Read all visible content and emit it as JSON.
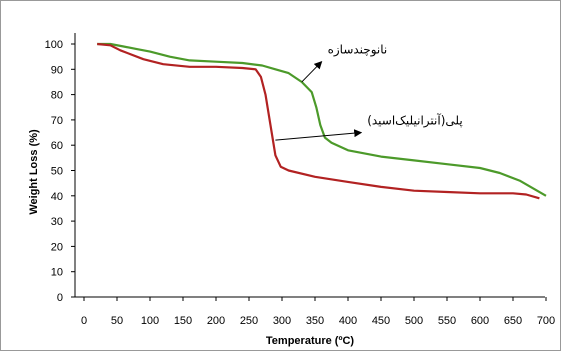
{
  "chart_data": {
    "type": "line",
    "title": "",
    "xlabel": "Temperature (ºC)",
    "ylabel": "Weight Loss (%)",
    "xlim": [
      0,
      720
    ],
    "ylim": [
      0,
      105
    ],
    "x_ticks": [
      "0",
      "50",
      "100",
      "150",
      "200",
      "250",
      "300",
      "350",
      "400",
      "450",
      "500",
      "550",
      "600",
      "650",
      "700"
    ],
    "y_ticks": [
      "0",
      "10",
      "20",
      "30",
      "40",
      "50",
      "60",
      "70",
      "80",
      "90",
      "100"
    ],
    "grid": false,
    "legend": "none",
    "series": [
      {
        "color": "#4c9a2a",
        "points": [
          [
            20,
            100
          ],
          [
            40,
            100
          ],
          [
            60,
            99
          ],
          [
            80,
            98
          ],
          [
            100,
            97
          ],
          [
            130,
            95
          ],
          [
            160,
            93.5
          ],
          [
            200,
            93
          ],
          [
            240,
            92.5
          ],
          [
            270,
            91.5
          ],
          [
            290,
            90
          ],
          [
            310,
            88.5
          ],
          [
            330,
            85
          ],
          [
            345,
            81
          ],
          [
            352,
            75
          ],
          [
            358,
            68
          ],
          [
            365,
            63
          ],
          [
            375,
            61
          ],
          [
            400,
            58
          ],
          [
            450,
            55.5
          ],
          [
            500,
            54
          ],
          [
            550,
            52.5
          ],
          [
            600,
            51
          ],
          [
            630,
            49
          ],
          [
            660,
            46
          ],
          [
            680,
            43
          ],
          [
            700,
            40
          ]
        ]
      },
      {
        "color": "#b22222",
        "points": [
          [
            20,
            100
          ],
          [
            40,
            99.5
          ],
          [
            55,
            97.5
          ],
          [
            70,
            96
          ],
          [
            90,
            94
          ],
          [
            120,
            92
          ],
          [
            160,
            91
          ],
          [
            200,
            91
          ],
          [
            240,
            90.5
          ],
          [
            260,
            90
          ],
          [
            268,
            87
          ],
          [
            275,
            80
          ],
          [
            280,
            72
          ],
          [
            285,
            64
          ],
          [
            290,
            56
          ],
          [
            298,
            51.5
          ],
          [
            310,
            50
          ],
          [
            350,
            47.5
          ],
          [
            400,
            45.5
          ],
          [
            450,
            43.5
          ],
          [
            500,
            42
          ],
          [
            550,
            41.5
          ],
          [
            600,
            41
          ],
          [
            650,
            41
          ],
          [
            670,
            40.5
          ],
          [
            690,
            39
          ]
        ]
      }
    ],
    "annotations": [
      {
        "text": "نانوچندسازه",
        "target": [
          330,
          85
        ],
        "arrow_head": [
          360,
          93
        ]
      },
      {
        "text": "پلی(آنترانیلیک‌اسید)",
        "target": [
          290,
          62
        ],
        "arrow_head": [
          420,
          65
        ]
      }
    ]
  }
}
